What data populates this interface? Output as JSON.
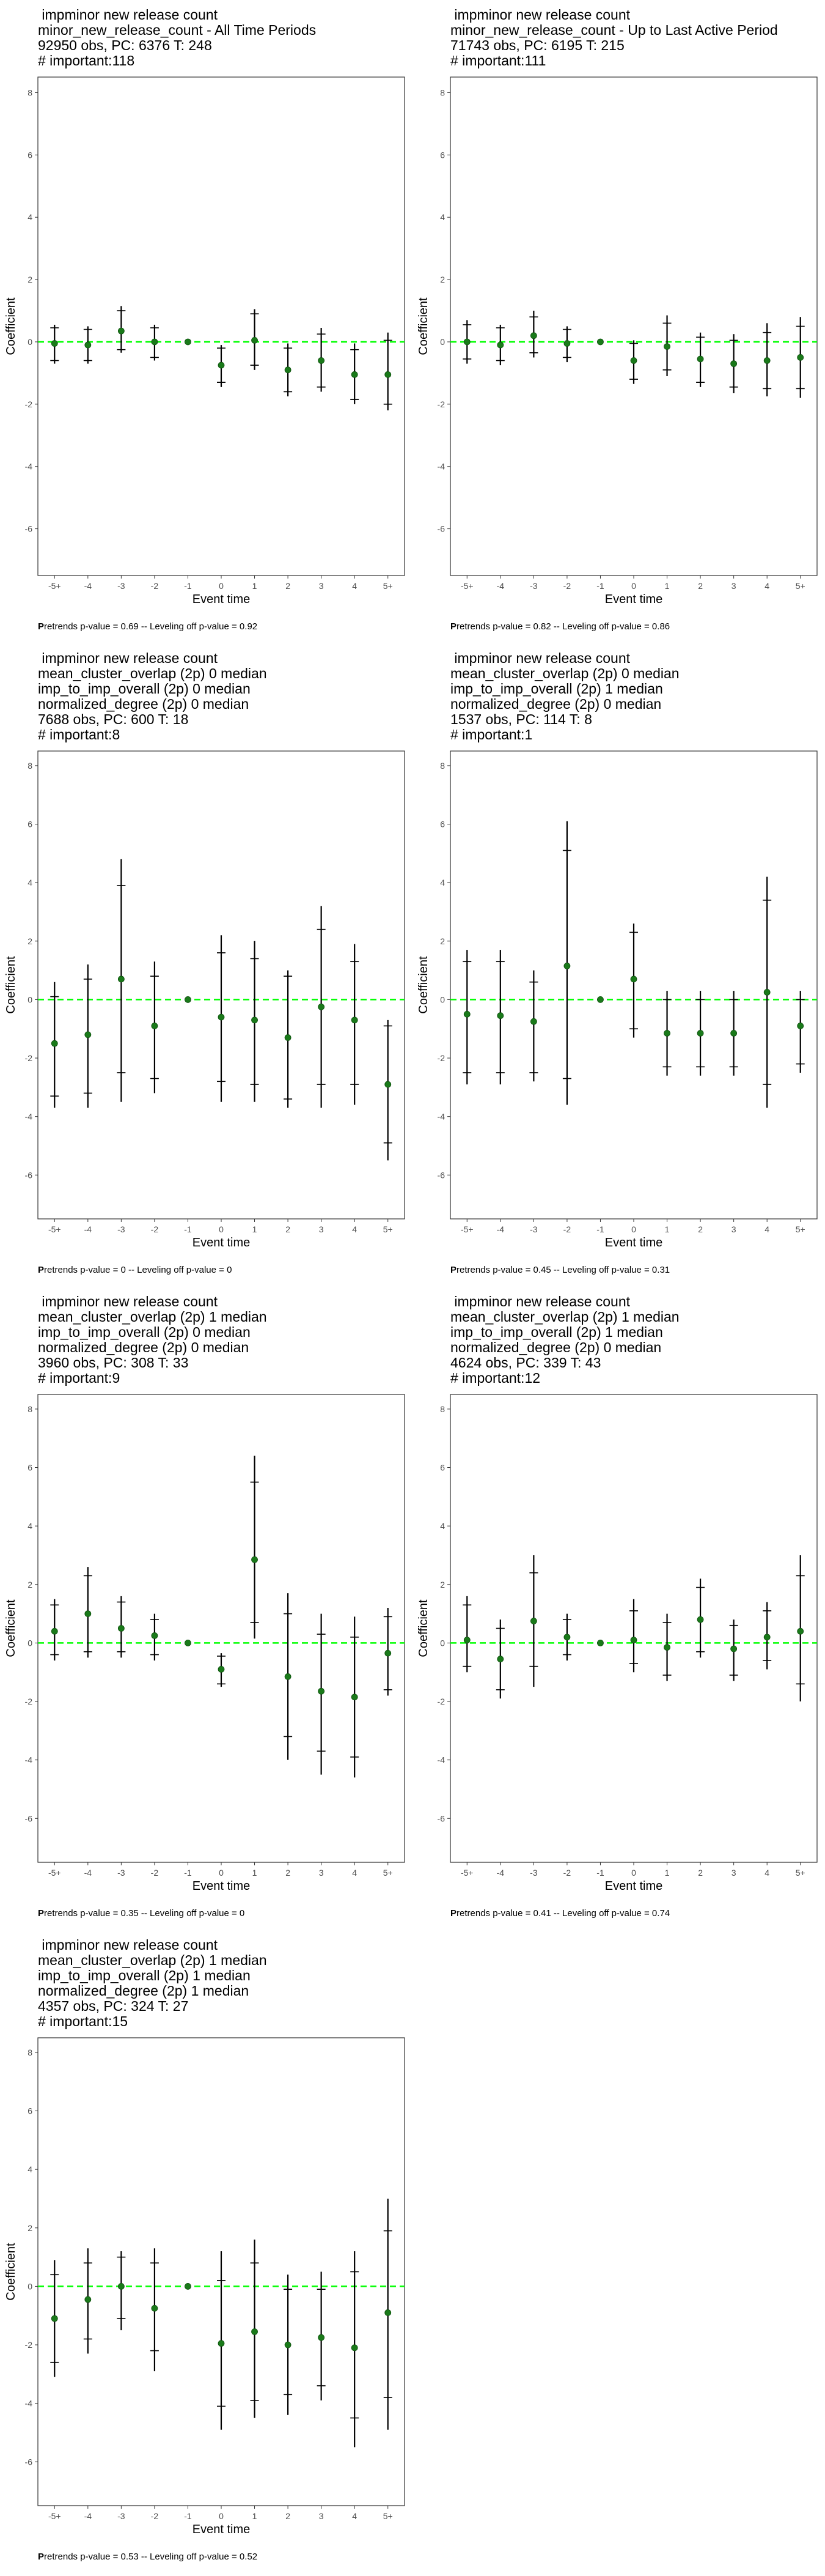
{
  "colors": {
    "background": "#ffffff",
    "panel_border": "#333333",
    "zero_line": "#00ff00",
    "point": "#1a7a1a",
    "errorbar": "#000000",
    "axis_text": "#4d4d4d"
  },
  "chart_data": [
    {
      "type": "scatter",
      "title_lines": [
        " impminor new release count",
        "minor_new_release_count - All Time Periods",
        "92950 obs, PC: 6376 T: 248",
        "# important:118"
      ],
      "xlabel": "Event time",
      "ylabel": "Coefficient",
      "categories": [
        "-5+",
        "-4",
        "-3",
        "-2",
        "-1",
        "0",
        "1",
        "2",
        "3",
        "4",
        "5+"
      ],
      "ylim": [
        -7.5,
        8.5
      ],
      "yticks": [
        -6,
        -4,
        -2,
        0,
        2,
        4,
        6,
        8
      ],
      "series": [
        {
          "values": [
            -0.05,
            -0.1,
            0.35,
            0.0,
            0.0,
            -0.75,
            0.05,
            -0.9,
            -0.6,
            -1.05,
            -1.05
          ]
        }
      ],
      "ci95": [
        [
          -0.7,
          0.55
        ],
        [
          -0.7,
          0.5
        ],
        [
          -0.35,
          1.15
        ],
        [
          -0.6,
          0.55
        ],
        [
          0,
          0
        ],
        [
          -1.45,
          -0.1
        ],
        [
          -0.9,
          1.05
        ],
        [
          -1.75,
          -0.05
        ],
        [
          -1.6,
          0.45
        ],
        [
          -2.0,
          -0.05
        ],
        [
          -2.2,
          0.3
        ]
      ],
      "ci90": [
        [
          -0.6,
          0.45
        ],
        [
          -0.6,
          0.4
        ],
        [
          -0.25,
          1.0
        ],
        [
          -0.5,
          0.45
        ],
        [
          0,
          0
        ],
        [
          -1.3,
          -0.2
        ],
        [
          -0.75,
          0.9
        ],
        [
          -1.6,
          -0.2
        ],
        [
          -1.45,
          0.25
        ],
        [
          -1.85,
          -0.25
        ],
        [
          -2.0,
          0.05
        ]
      ],
      "footer_first": "P",
      "footer_rest": "retrends p-value = 0.69 -- Leveling off p-value = 0.92"
    },
    {
      "type": "scatter",
      "title_lines": [
        " impminor new release count",
        "minor_new_release_count - Up to Last Active Period",
        "71743 obs, PC: 6195 T: 215",
        "# important:111"
      ],
      "xlabel": "Event time",
      "ylabel": "Coefficient",
      "categories": [
        "-5+",
        "-4",
        "-3",
        "-2",
        "-1",
        "0",
        "1",
        "2",
        "3",
        "4",
        "5+"
      ],
      "ylim": [
        -7.5,
        8.5
      ],
      "yticks": [
        -6,
        -4,
        -2,
        0,
        2,
        4,
        6,
        8
      ],
      "series": [
        {
          "values": [
            0.0,
            -0.1,
            0.2,
            -0.05,
            0.0,
            -0.6,
            -0.15,
            -0.55,
            -0.7,
            -0.6,
            -0.5
          ]
        }
      ],
      "ci95": [
        [
          -0.7,
          0.7
        ],
        [
          -0.75,
          0.55
        ],
        [
          -0.5,
          1.0
        ],
        [
          -0.65,
          0.5
        ],
        [
          0,
          0
        ],
        [
          -1.35,
          0.05
        ],
        [
          -1.1,
          0.85
        ],
        [
          -1.45,
          0.3
        ],
        [
          -1.65,
          0.25
        ],
        [
          -1.75,
          0.6
        ],
        [
          -1.8,
          0.8
        ]
      ],
      "ci90": [
        [
          -0.55,
          0.55
        ],
        [
          -0.6,
          0.45
        ],
        [
          -0.35,
          0.8
        ],
        [
          -0.5,
          0.4
        ],
        [
          0,
          0
        ],
        [
          -1.2,
          -0.05
        ],
        [
          -0.9,
          0.6
        ],
        [
          -1.3,
          0.15
        ],
        [
          -1.45,
          0.05
        ],
        [
          -1.5,
          0.3
        ],
        [
          -1.5,
          0.5
        ]
      ],
      "footer_first": "P",
      "footer_rest": "retrends p-value = 0.82 -- Leveling off p-value = 0.86"
    },
    {
      "type": "scatter",
      "title_lines": [
        " impminor new release count",
        "mean_cluster_overlap (2p) 0 median",
        "imp_to_imp_overall (2p) 0 median",
        "normalized_degree (2p) 0 median",
        "7688 obs, PC: 600 T: 18",
        "# important:8"
      ],
      "xlabel": "Event time",
      "ylabel": "Coefficient",
      "categories": [
        "-5+",
        "-4",
        "-3",
        "-2",
        "-1",
        "0",
        "1",
        "2",
        "3",
        "4",
        "5+"
      ],
      "ylim": [
        -7.5,
        8.5
      ],
      "yticks": [
        -6,
        -4,
        -2,
        0,
        2,
        4,
        6,
        8
      ],
      "series": [
        {
          "values": [
            -1.5,
            -1.2,
            0.7,
            -0.9,
            0.0,
            -0.6,
            -0.7,
            -1.3,
            -0.25,
            -0.7,
            -2.9
          ]
        }
      ],
      "ci95": [
        [
          -3.7,
          0.6
        ],
        [
          -3.7,
          1.2
        ],
        [
          -3.5,
          4.8
        ],
        [
          -3.2,
          1.3
        ],
        [
          0,
          0
        ],
        [
          -3.5,
          2.2
        ],
        [
          -3.5,
          2.0
        ],
        [
          -3.7,
          1.0
        ],
        [
          -3.7,
          3.2
        ],
        [
          -3.6,
          1.9
        ],
        [
          -5.5,
          -0.7
        ]
      ],
      "ci90": [
        [
          -3.3,
          0.1
        ],
        [
          -3.2,
          0.7
        ],
        [
          -2.5,
          3.9
        ],
        [
          -2.7,
          0.8
        ],
        [
          0,
          0
        ],
        [
          -2.8,
          1.6
        ],
        [
          -2.9,
          1.4
        ],
        [
          -3.4,
          0.8
        ],
        [
          -2.9,
          2.4
        ],
        [
          -2.9,
          1.3
        ],
        [
          -4.9,
          -0.9
        ]
      ],
      "footer_first": "P",
      "footer_rest": "retrends p-value = 0 -- Leveling off p-value = 0"
    },
    {
      "type": "scatter",
      "title_lines": [
        " impminor new release count",
        "mean_cluster_overlap (2p) 0 median",
        "imp_to_imp_overall (2p) 1 median",
        "normalized_degree (2p) 0 median",
        "1537 obs, PC: 114 T: 8",
        "# important:1"
      ],
      "xlabel": "Event time",
      "ylabel": "Coefficient",
      "categories": [
        "-5+",
        "-4",
        "-3",
        "-2",
        "-1",
        "0",
        "1",
        "2",
        "3",
        "4",
        "5+"
      ],
      "ylim": [
        -7.5,
        8.5
      ],
      "yticks": [
        -6,
        -4,
        -2,
        0,
        2,
        4,
        6,
        8
      ],
      "series": [
        {
          "values": [
            -0.5,
            -0.55,
            -0.75,
            1.15,
            0.0,
            0.7,
            -1.15,
            -1.15,
            -1.15,
            0.25,
            -0.9
          ]
        }
      ],
      "ci95": [
        [
          -2.9,
          1.7
        ],
        [
          -2.9,
          1.7
        ],
        [
          -2.8,
          1.0
        ],
        [
          -3.6,
          6.1
        ],
        [
          0,
          0
        ],
        [
          -1.3,
          2.6
        ],
        [
          -2.6,
          0.3
        ],
        [
          -2.6,
          0.3
        ],
        [
          -2.6,
          0.3
        ],
        [
          -3.7,
          4.2
        ],
        [
          -2.5,
          0.3
        ]
      ],
      "ci90": [
        [
          -2.5,
          1.3
        ],
        [
          -2.5,
          1.3
        ],
        [
          -2.5,
          0.6
        ],
        [
          -2.7,
          5.1
        ],
        [
          0,
          0
        ],
        [
          -1.0,
          2.3
        ],
        [
          -2.3,
          0.0
        ],
        [
          -2.3,
          0.0
        ],
        [
          -2.3,
          0.0
        ],
        [
          -2.9,
          3.4
        ],
        [
          -2.2,
          0.0
        ]
      ],
      "footer_first": "P",
      "footer_rest": "retrends p-value = 0.45 -- Leveling off p-value = 0.31"
    },
    {
      "type": "scatter",
      "title_lines": [
        " impminor new release count",
        "mean_cluster_overlap (2p) 1 median",
        "imp_to_imp_overall (2p) 0 median",
        "normalized_degree (2p) 0 median",
        "3960 obs, PC: 308 T: 33",
        "# important:9"
      ],
      "xlabel": "Event time",
      "ylabel": "Coefficient",
      "categories": [
        "-5+",
        "-4",
        "-3",
        "-2",
        "-1",
        "0",
        "1",
        "2",
        "3",
        "4",
        "5+"
      ],
      "ylim": [
        -7.5,
        8.5
      ],
      "yticks": [
        -6,
        -4,
        -2,
        0,
        2,
        4,
        6,
        8
      ],
      "series": [
        {
          "values": [
            0.4,
            1.0,
            0.5,
            0.25,
            0.0,
            -0.9,
            2.85,
            -1.15,
            -1.65,
            -1.85,
            -0.35
          ]
        }
      ],
      "ci95": [
        [
          -0.6,
          1.5
        ],
        [
          -0.5,
          2.6
        ],
        [
          -0.5,
          1.6
        ],
        [
          -0.6,
          1.0
        ],
        [
          0,
          0
        ],
        [
          -1.5,
          -0.35
        ],
        [
          0.15,
          6.4
        ],
        [
          -4.0,
          1.7
        ],
        [
          -4.5,
          1.0
        ],
        [
          -4.6,
          0.9
        ],
        [
          -1.8,
          1.2
        ]
      ],
      "ci90": [
        [
          -0.4,
          1.3
        ],
        [
          -0.3,
          2.3
        ],
        [
          -0.3,
          1.4
        ],
        [
          -0.4,
          0.8
        ],
        [
          0,
          0
        ],
        [
          -1.4,
          -0.45
        ],
        [
          0.7,
          5.5
        ],
        [
          -3.2,
          1.0
        ],
        [
          -3.7,
          0.3
        ],
        [
          -3.9,
          0.2
        ],
        [
          -1.6,
          0.9
        ]
      ],
      "footer_first": "P",
      "footer_rest": "retrends p-value = 0.35 -- Leveling off p-value = 0"
    },
    {
      "type": "scatter",
      "title_lines": [
        " impminor new release count",
        "mean_cluster_overlap (2p) 1 median",
        "imp_to_imp_overall (2p) 1 median",
        "normalized_degree (2p) 0 median",
        "4624 obs, PC: 339 T: 43",
        "# important:12"
      ],
      "xlabel": "Event time",
      "ylabel": "Coefficient",
      "categories": [
        "-5+",
        "-4",
        "-3",
        "-2",
        "-1",
        "0",
        "1",
        "2",
        "3",
        "4",
        "5+"
      ],
      "ylim": [
        -7.5,
        8.5
      ],
      "yticks": [
        -6,
        -4,
        -2,
        0,
        2,
        4,
        6,
        8
      ],
      "series": [
        {
          "values": [
            0.1,
            -0.55,
            0.75,
            0.2,
            0.0,
            0.1,
            -0.15,
            0.8,
            -0.2,
            0.2,
            0.4
          ]
        }
      ],
      "ci95": [
        [
          -1.0,
          1.6
        ],
        [
          -1.9,
          0.8
        ],
        [
          -1.5,
          3.0
        ],
        [
          -0.6,
          1.0
        ],
        [
          0,
          0
        ],
        [
          -1.0,
          1.5
        ],
        [
          -1.3,
          1.0
        ],
        [
          -0.5,
          2.2
        ],
        [
          -1.3,
          0.8
        ],
        [
          -0.9,
          1.4
        ],
        [
          -2.0,
          3.0
        ]
      ],
      "ci90": [
        [
          -0.8,
          1.3
        ],
        [
          -1.6,
          0.5
        ],
        [
          -0.8,
          2.4
        ],
        [
          -0.4,
          0.8
        ],
        [
          0,
          0
        ],
        [
          -0.7,
          1.1
        ],
        [
          -1.1,
          0.7
        ],
        [
          -0.3,
          1.9
        ],
        [
          -1.1,
          0.6
        ],
        [
          -0.6,
          1.1
        ],
        [
          -1.4,
          2.3
        ]
      ],
      "footer_first": "P",
      "footer_rest": "retrends p-value = 0.41 -- Leveling off p-value = 0.74"
    },
    {
      "type": "scatter",
      "title_lines": [
        " impminor new release count",
        "mean_cluster_overlap (2p) 1 median",
        "imp_to_imp_overall (2p) 1 median",
        "normalized_degree (2p) 1 median",
        "4357 obs, PC: 324 T: 27",
        "# important:15"
      ],
      "xlabel": "Event time",
      "ylabel": "Coefficient",
      "categories": [
        "-5+",
        "-4",
        "-3",
        "-2",
        "-1",
        "0",
        "1",
        "2",
        "3",
        "4",
        "5+"
      ],
      "ylim": [
        -7.5,
        8.5
      ],
      "yticks": [
        -6,
        -4,
        -2,
        0,
        2,
        4,
        6,
        8
      ],
      "series": [
        {
          "values": [
            -1.1,
            -0.45,
            0.0,
            -0.75,
            0.0,
            -1.95,
            -1.55,
            -2.0,
            -1.75,
            -2.1,
            -0.9
          ]
        }
      ],
      "ci95": [
        [
          -3.1,
          0.9
        ],
        [
          -2.3,
          1.3
        ],
        [
          -1.5,
          1.2
        ],
        [
          -2.9,
          1.3
        ],
        [
          0,
          0
        ],
        [
          -4.9,
          1.2
        ],
        [
          -4.5,
          1.6
        ],
        [
          -4.4,
          0.4
        ],
        [
          -3.9,
          0.5
        ],
        [
          -5.5,
          1.2
        ],
        [
          -4.9,
          3.0
        ]
      ],
      "ci90": [
        [
          -2.6,
          0.4
        ],
        [
          -1.8,
          0.8
        ],
        [
          -1.1,
          1.0
        ],
        [
          -2.2,
          0.8
        ],
        [
          0,
          0
        ],
        [
          -4.1,
          0.2
        ],
        [
          -3.9,
          0.8
        ],
        [
          -3.7,
          -0.1
        ],
        [
          -3.4,
          -0.1
        ],
        [
          -4.5,
          0.5
        ],
        [
          -3.8,
          1.9
        ]
      ],
      "footer_first": "P",
      "footer_rest": "retrends p-value = 0.53 -- Leveling off p-value = 0.52"
    }
  ]
}
